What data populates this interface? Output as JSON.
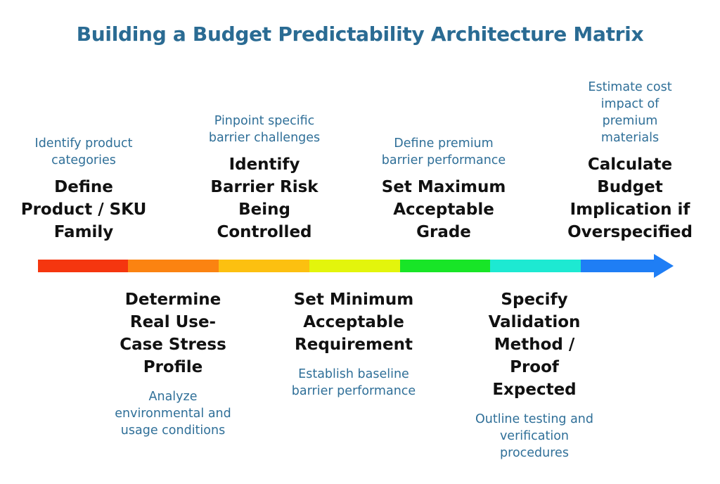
{
  "title": "Building a Budget Predictability Architecture Matrix",
  "steps": [
    {
      "position": "top",
      "heading": "Define Product / SKU Family",
      "description": "Identify product categories",
      "color": "#f5360f"
    },
    {
      "position": "bottom",
      "heading": "Determine Real Use-Case Stress Profile",
      "description": "Analyze environmental and usage conditions",
      "color": "#fb8311"
    },
    {
      "position": "top",
      "heading": "Identify Barrier Risk Being Controlled",
      "description": "Pinpoint specific barrier challenges",
      "color": "#fcc010"
    },
    {
      "position": "bottom",
      "heading": "Set Minimum Acceptable Requirement",
      "description": "Establish baseline barrier performance",
      "color": "#e3f50c"
    },
    {
      "position": "top",
      "heading": "Set Maximum Acceptable Grade",
      "description": "Define premium barrier performance",
      "color": "#18e527"
    },
    {
      "position": "bottom",
      "heading": "Specify Validation Method / Proof Expected",
      "description": "Outline testing and verification procedures",
      "color": "#1de9d2"
    },
    {
      "position": "top",
      "heading": "Calculate Budget Implication if Overspecified",
      "description": "Estimate cost impact of premium materials",
      "color": "#1f7ef5"
    }
  ]
}
